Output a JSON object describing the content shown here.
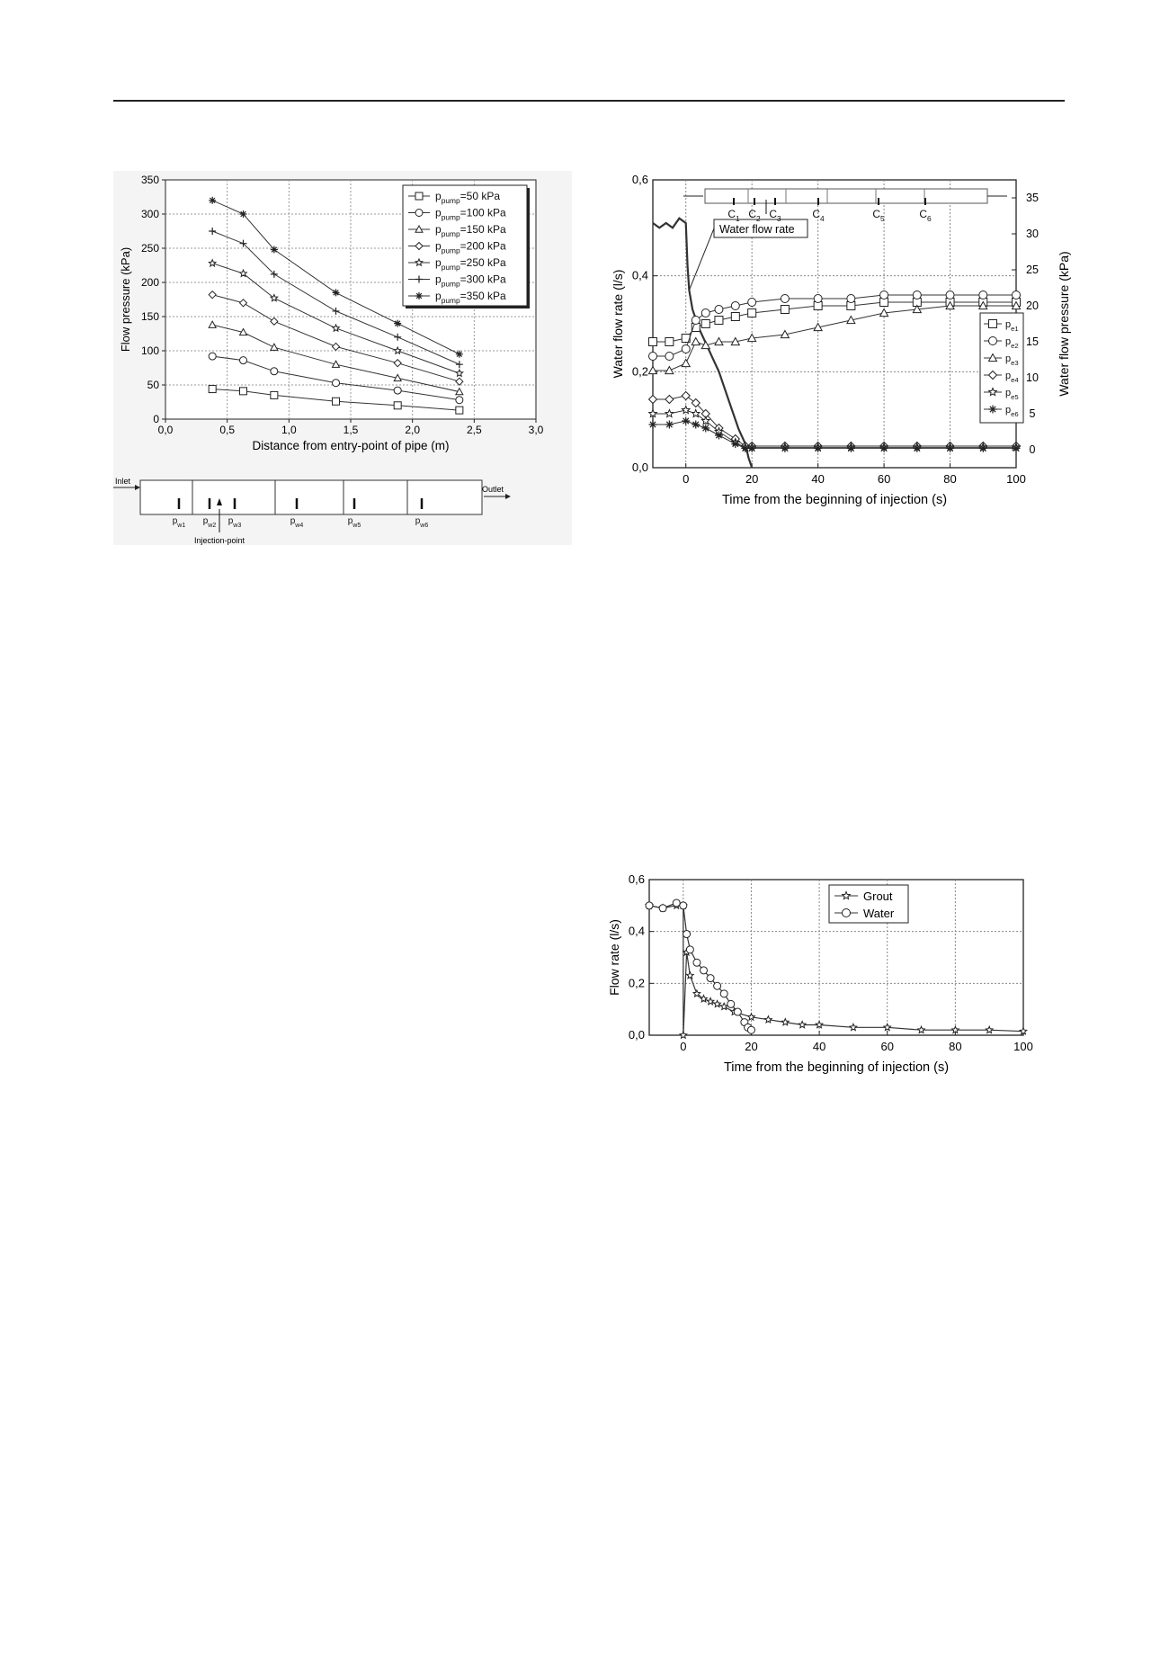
{
  "chart_data": [
    {
      "type": "line",
      "title": "",
      "xlabel": "Distance from entry-point of pipe (m)",
      "ylabel": "Flow pressure (kPa)",
      "xlim": [
        0,
        3.0
      ],
      "ylim": [
        0,
        350
      ],
      "xticks": [
        0,
        0.5,
        1.0,
        1.5,
        2.0,
        2.5,
        3.0
      ],
      "xtick_labels": [
        "0,0",
        "0,5",
        "1,0",
        "1,5",
        "2,0",
        "2,5",
        "3,0"
      ],
      "yticks": [
        0,
        50,
        100,
        150,
        200,
        250,
        300,
        350
      ],
      "ytick_labels": [
        "0",
        "50",
        "100",
        "150",
        "200",
        "250",
        "300",
        "350"
      ],
      "grid": true,
      "legend_position": "top-right",
      "x": [
        0.38,
        0.63,
        0.88,
        1.38,
        1.88,
        2.38
      ],
      "series": [
        {
          "name": "p_pump=50 kPa",
          "label_main": "p",
          "label_sub": "pump",
          "label_rest": "=50 kPa",
          "marker": "square",
          "values": [
            44,
            41,
            35,
            26,
            20,
            13
          ]
        },
        {
          "name": "p_pump=100 kPa",
          "label_main": "p",
          "label_sub": "pump",
          "label_rest": "=100 kPa",
          "marker": "circle",
          "values": [
            92,
            86,
            70,
            53,
            42,
            28
          ]
        },
        {
          "name": "p_pump=150 kPa",
          "label_main": "p",
          "label_sub": "pump",
          "label_rest": "=150 kPa",
          "marker": "triangle",
          "values": [
            138,
            127,
            105,
            80,
            60,
            40
          ]
        },
        {
          "name": "p_pump=200 kPa",
          "label_main": "p",
          "label_sub": "pump",
          "label_rest": "=200 kPa",
          "marker": "diamond",
          "values": [
            182,
            170,
            143,
            106,
            82,
            55
          ]
        },
        {
          "name": "p_pump=250 kPa",
          "label_main": "p",
          "label_sub": "pump",
          "label_rest": "=250 kPa",
          "marker": "star",
          "values": [
            228,
            213,
            177,
            133,
            100,
            67
          ]
        },
        {
          "name": "p_pump=300 kPa",
          "label_main": "p",
          "label_sub": "pump",
          "label_rest": "=300 kPa",
          "marker": "plus",
          "values": [
            275,
            257,
            212,
            158,
            120,
            80
          ]
        },
        {
          "name": "p_pump=350 kPa",
          "label_main": "p",
          "label_sub": "pump",
          "label_rest": "=350 kPa",
          "marker": "asterisk",
          "values": [
            320,
            300,
            248,
            185,
            140,
            95
          ]
        }
      ],
      "schematic": {
        "inlet": "Inlet",
        "outlet": "Outlet",
        "injection_label": "Injection-point",
        "sensors": [
          {
            "main": "p",
            "sub": "w1"
          },
          {
            "main": "p",
            "sub": "w2"
          },
          {
            "main": "p",
            "sub": "w3"
          },
          {
            "main": "p",
            "sub": "w4"
          },
          {
            "main": "p",
            "sub": "w5"
          },
          {
            "main": "p",
            "sub": "w6"
          }
        ]
      }
    },
    {
      "type": "line",
      "title": "",
      "xlabel": "Time from the beginning of injection (s)",
      "ylabel": "Water flow rate (l/s)",
      "ylabel_right": "Water flow pressure (kPa)",
      "xlim": [
        -10,
        100
      ],
      "ylim": [
        0,
        0.6
      ],
      "ylim_right": [
        -2.5,
        37.5
      ],
      "xticks": [
        0,
        20,
        40,
        60,
        80,
        100
      ],
      "yticks": [
        0,
        0.2,
        0.4,
        0.6
      ],
      "ytick_labels": [
        "0,0",
        "0,2",
        "0,4",
        "0,6"
      ],
      "yticks_right": [
        0,
        5,
        10,
        15,
        20,
        25,
        30,
        35
      ],
      "grid": true,
      "legend_position": "right",
      "annotation": "Water flow rate",
      "schematic_labels": [
        {
          "main": "C",
          "sub": "1"
        },
        {
          "main": "C",
          "sub": "2"
        },
        {
          "main": "C",
          "sub": "3"
        },
        {
          "main": "C",
          "sub": "4"
        },
        {
          "main": "C",
          "sub": "5"
        },
        {
          "main": "C",
          "sub": "6"
        }
      ],
      "flow_rate": {
        "x": [
          -10,
          -8,
          -6,
          -4,
          -2,
          0,
          0.5,
          1,
          2,
          4,
          6,
          8,
          10,
          12,
          14,
          16,
          18,
          19,
          20
        ],
        "y": [
          0.51,
          0.5,
          0.51,
          0.5,
          0.52,
          0.51,
          0.42,
          0.37,
          0.33,
          0.29,
          0.26,
          0.23,
          0.2,
          0.16,
          0.12,
          0.08,
          0.05,
          0.02,
          0.0
        ]
      },
      "series": [
        {
          "name": "p_e1",
          "label_main": "p",
          "label_sub": "e1",
          "marker": "square",
          "x": [
            -10,
            -5,
            0,
            3,
            6,
            10,
            15,
            20,
            30,
            40,
            50,
            60,
            70,
            80,
            90,
            100
          ],
          "values": [
            15,
            15,
            15.5,
            17,
            17.5,
            18,
            18.5,
            19,
            19.5,
            20,
            20,
            20.5,
            20.5,
            20.5,
            20.5,
            20.5
          ]
        },
        {
          "name": "p_e2",
          "label_main": "p",
          "label_sub": "e2",
          "marker": "circle",
          "x": [
            -10,
            -5,
            0,
            3,
            6,
            10,
            15,
            20,
            30,
            40,
            50,
            60,
            70,
            80,
            90,
            100
          ],
          "values": [
            13,
            13,
            14,
            18,
            19,
            19.5,
            20,
            20.5,
            21,
            21,
            21,
            21.5,
            21.5,
            21.5,
            21.5,
            21.5
          ]
        },
        {
          "name": "p_e3",
          "label_main": "p",
          "label_sub": "e3",
          "marker": "triangle",
          "x": [
            -10,
            -5,
            0,
            3,
            6,
            10,
            15,
            20,
            30,
            40,
            50,
            60,
            70,
            80,
            90,
            100
          ],
          "values": [
            11,
            11,
            12,
            15,
            14.5,
            15,
            15,
            15.5,
            16,
            17,
            18,
            19,
            19.5,
            20,
            20,
            20
          ]
        },
        {
          "name": "p_e4",
          "label_main": "p",
          "label_sub": "e4",
          "marker": "diamond",
          "x": [
            -10,
            -5,
            0,
            3,
            6,
            10,
            15,
            18,
            20,
            30,
            40,
            50,
            60,
            70,
            80,
            90,
            100
          ],
          "values": [
            7,
            7,
            7.5,
            6.5,
            5,
            3,
            1.5,
            0.5,
            0.5,
            0.5,
            0.5,
            0.5,
            0.5,
            0.5,
            0.5,
            0.5,
            0.5
          ]
        },
        {
          "name": "p_e5",
          "label_main": "p",
          "label_sub": "e5",
          "marker": "star",
          "x": [
            -10,
            -5,
            0,
            3,
            6,
            10,
            15,
            18,
            20,
            30,
            40,
            50,
            60,
            70,
            80,
            90,
            100
          ],
          "values": [
            5,
            5,
            5.5,
            5,
            4,
            2.5,
            1,
            0.3,
            0.3,
            0.3,
            0.3,
            0.3,
            0.3,
            0.3,
            0.3,
            0.3,
            0.3
          ]
        },
        {
          "name": "p_e6",
          "label_main": "p",
          "label_sub": "e6",
          "marker": "asterisk",
          "x": [
            -10,
            -5,
            0,
            3,
            6,
            10,
            15,
            18,
            20,
            30,
            40,
            50,
            60,
            70,
            80,
            90,
            100
          ],
          "values": [
            3.5,
            3.5,
            4,
            3.5,
            3,
            2,
            0.8,
            0.2,
            0.2,
            0.2,
            0.2,
            0.2,
            0.2,
            0.2,
            0.2,
            0.2,
            0.2
          ]
        }
      ]
    },
    {
      "type": "line",
      "title": "",
      "xlabel": "Time from the beginning of injection (s)",
      "ylabel": "Flow rate (l/s)",
      "xlim": [
        -10,
        100
      ],
      "ylim": [
        0,
        0.6
      ],
      "xticks": [
        0,
        20,
        40,
        60,
        80,
        100
      ],
      "yticks": [
        0,
        0.2,
        0.4,
        0.6
      ],
      "ytick_labels": [
        "0,0",
        "0,2",
        "0,4",
        "0,6"
      ],
      "grid": true,
      "legend_position": "top-center",
      "series": [
        {
          "name": "Grout",
          "marker": "star",
          "x": [
            -10,
            -6,
            -2,
            0,
            0.01,
            1,
            2,
            4,
            6,
            8,
            10,
            12,
            15,
            20,
            25,
            30,
            35,
            40,
            50,
            60,
            70,
            80,
            90,
            100
          ],
          "values": [
            0.5,
            0.49,
            0.5,
            0.5,
            0.0,
            0.32,
            0.23,
            0.16,
            0.14,
            0.13,
            0.12,
            0.11,
            0.09,
            0.07,
            0.06,
            0.05,
            0.04,
            0.04,
            0.03,
            0.03,
            0.02,
            0.02,
            0.02,
            0.015
          ]
        },
        {
          "name": "Water",
          "marker": "circle",
          "x": [
            -10,
            -6,
            -2,
            0,
            1,
            2,
            4,
            6,
            8,
            10,
            12,
            14,
            16,
            18,
            19,
            20
          ],
          "values": [
            0.5,
            0.49,
            0.51,
            0.5,
            0.39,
            0.33,
            0.28,
            0.25,
            0.22,
            0.19,
            0.16,
            0.12,
            0.09,
            0.05,
            0.03,
            0.02
          ]
        }
      ]
    }
  ]
}
